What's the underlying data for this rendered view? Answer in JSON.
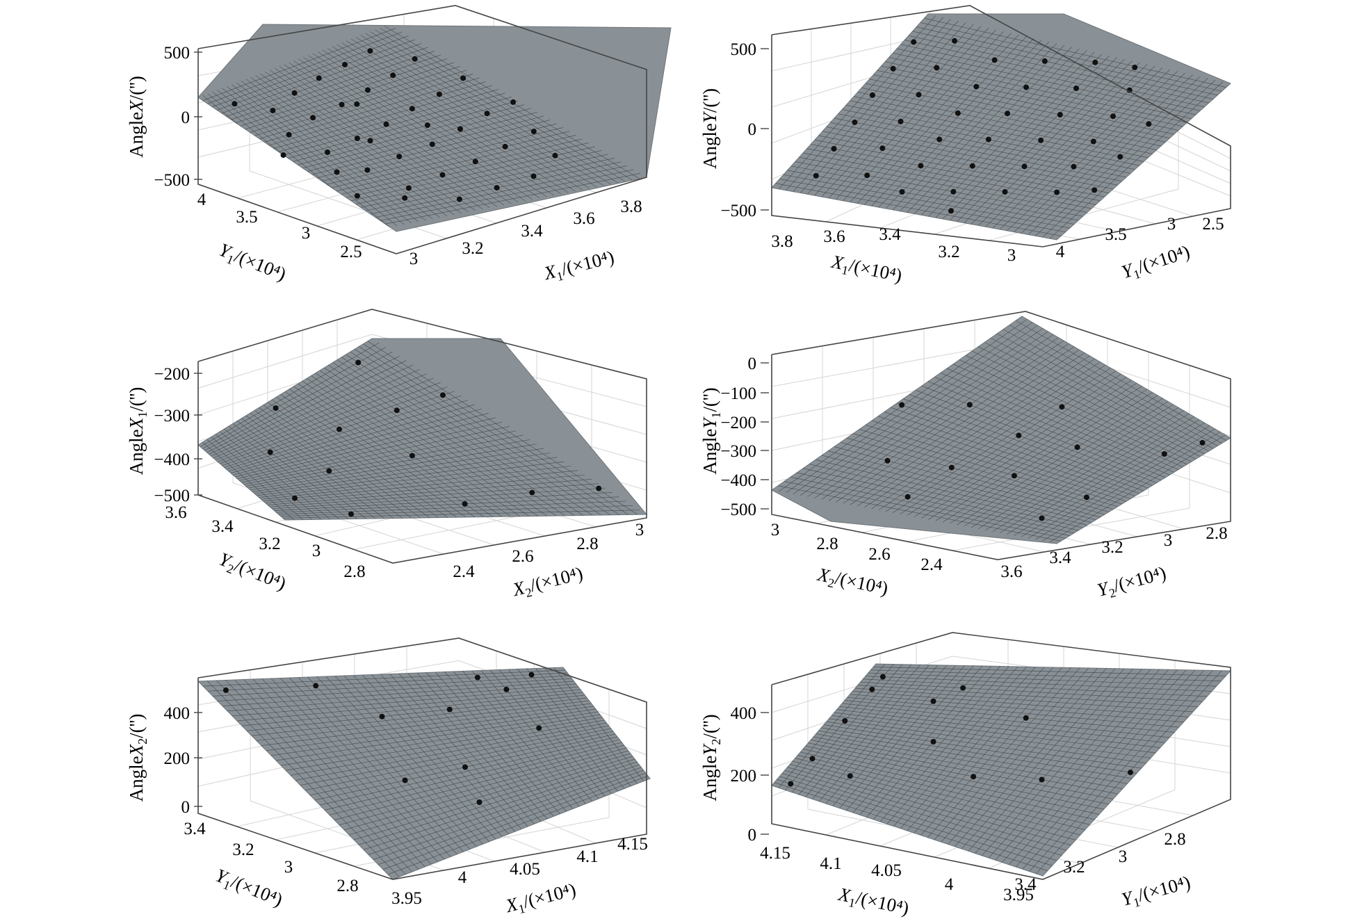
{
  "chart_data": [
    {
      "type": "surface3d",
      "zlabel": "AngleX/('')",
      "xlabel": "X1/(×10⁴)",
      "ylabel": "Y1/(×10⁴)",
      "z_ticks": [
        "500",
        "0",
        "−500"
      ],
      "y_ticks": [
        "4",
        "3.5",
        "3",
        "2.5"
      ],
      "x_ticks": [
        "3",
        "3.2",
        "3.4",
        "3.6",
        "3.8"
      ],
      "zlim": [
        -600,
        700
      ],
      "surface_color": "#8a9196",
      "points_count": 60
    },
    {
      "type": "surface3d",
      "zlabel": "AngleY/('')",
      "xlabel": "X1/(×10⁴)",
      "ylabel": "Y1/(×10⁴)",
      "z_ticks": [
        "500",
        "0",
        "−500"
      ],
      "x_ticks": [
        "3.8",
        "3.6",
        "3.4",
        "3.2",
        "3"
      ],
      "y_ticks": [
        "4",
        "3.5",
        "3",
        "2.5"
      ],
      "zlim": [
        -550,
        700
      ],
      "surface_color": "#8a9196",
      "points_count": 60
    },
    {
      "type": "surface3d",
      "zlabel": "AngleX1/('')",
      "xlabel": "X2/(×10⁴)",
      "ylabel": "Y2/(×10⁴)",
      "z_ticks": [
        "−200",
        "−300",
        "−400",
        "−500"
      ],
      "y_ticks": [
        "3.6",
        "3.4",
        "3.2",
        "3",
        "2.8"
      ],
      "x_ticks": [
        "2.4",
        "2.6",
        "2.8",
        "3"
      ],
      "zlim": [
        -520,
        -160
      ],
      "surface_color": "#8a9196",
      "points_count": 13
    },
    {
      "type": "surface3d",
      "zlabel": "AngleY1/('')",
      "xlabel": "X2/(×10⁴)",
      "ylabel": "Y2/(×10⁴)",
      "z_ticks": [
        "0",
        "−100",
        "−200",
        "−300",
        "−400",
        "−500"
      ],
      "x_ticks": [
        "3",
        "2.8",
        "2.6",
        "2.4"
      ],
      "y_ticks": [
        "3.6",
        "3.4",
        "3.2",
        "3",
        "2.8"
      ],
      "zlim": [
        -520,
        40
      ],
      "surface_color": "#8a9196",
      "points_count": 13
    },
    {
      "type": "surface3d",
      "zlabel": "AngleX2/('')",
      "xlabel": "X1/(×10⁴)",
      "ylabel": "Y1/(×10⁴)",
      "z_ticks": [
        "400",
        "200",
        "0"
      ],
      "y_ticks": [
        "3.4",
        "3.2",
        "3",
        "2.8"
      ],
      "x_ticks": [
        "3.95",
        "4",
        "4.05",
        "4.1",
        "4.15"
      ],
      "zlim": [
        -20,
        560
      ],
      "surface_color": "#8a9196",
      "points_count": 11
    },
    {
      "type": "surface3d",
      "zlabel": "AngleY2/('')",
      "xlabel": "X1/(×10⁴)",
      "ylabel": "Y1/(×10⁴)",
      "z_ticks": [
        "400",
        "200",
        "0"
      ],
      "x_ticks": [
        "4.15",
        "4.1",
        "4.05",
        "4",
        "3.95"
      ],
      "y_ticks": [
        "3.4",
        "3.2",
        "3",
        "2.8"
      ],
      "zlim": [
        -20,
        560
      ],
      "surface_color": "#8a9196",
      "points_count": 13
    }
  ]
}
